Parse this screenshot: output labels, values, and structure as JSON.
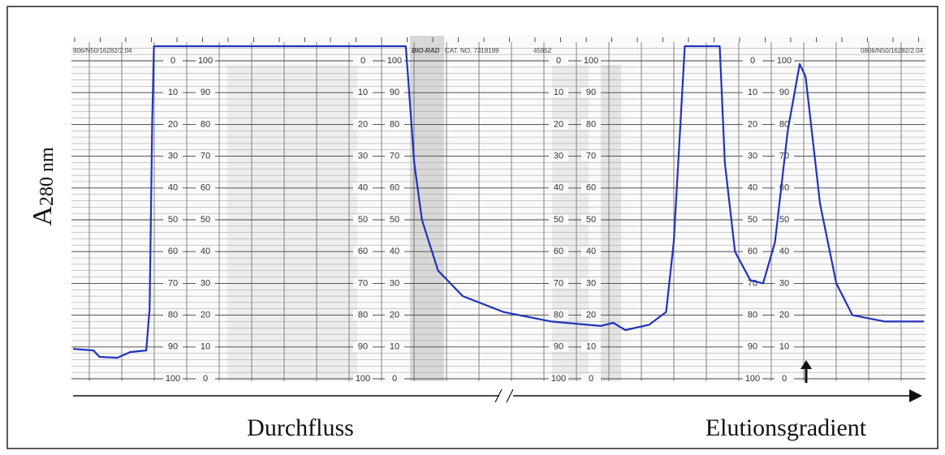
{
  "chart_data": {
    "type": "line",
    "y_label": "A",
    "y_label_sub": "280 nm",
    "header_left": "806/N50/16282/2.04",
    "header_brand": "BIO-RAD",
    "header_cat": "CAT. NO. 7318198",
    "header_num": "45952",
    "header_right": "0806/N50/16282/2.04",
    "annotations": [
      "Durchfluss",
      "Elutionsgradient"
    ],
    "xlim": [
      0,
      100
    ],
    "ylim": [
      0,
      105
    ],
    "yticks": [
      0,
      10,
      20,
      30,
      40,
      50,
      60,
      70,
      80,
      90,
      100
    ],
    "y2lim": [
      100,
      -5
    ],
    "y2ticks": [
      0,
      10,
      20,
      30,
      40,
      50,
      60,
      70,
      80,
      90,
      100
    ],
    "grid": true,
    "series": [
      {
        "color": "#2233bb",
        "x": [
          0,
          2.4,
          3.1,
          5.2,
          6.7,
          8.6,
          9.0,
          9.3,
          9.5,
          39.1,
          39.4,
          40.1,
          41.0,
          42.9,
          45.8,
          50.6,
          56.2,
          62.0,
          63.5,
          64.9,
          67.7,
          69.7,
          70.6,
          71.4,
          71.9,
          76.0,
          76.6,
          77.8,
          79.6,
          81.1,
          82.5,
          84.0,
          85.4,
          86.1,
          87.8,
          89.7,
          91.6,
          95.4,
          100
        ],
        "values": [
          9.4,
          8.9,
          6.9,
          6.6,
          8.4,
          8.9,
          22,
          81,
          104.6,
          104.6,
          94,
          68,
          50,
          34,
          26,
          21,
          18,
          16.6,
          17.6,
          15.3,
          17,
          21,
          43,
          81,
          104.6,
          104.6,
          68,
          40,
          31,
          30,
          43,
          78,
          99,
          95,
          55,
          30,
          20,
          18,
          18
        ]
      }
    ]
  }
}
